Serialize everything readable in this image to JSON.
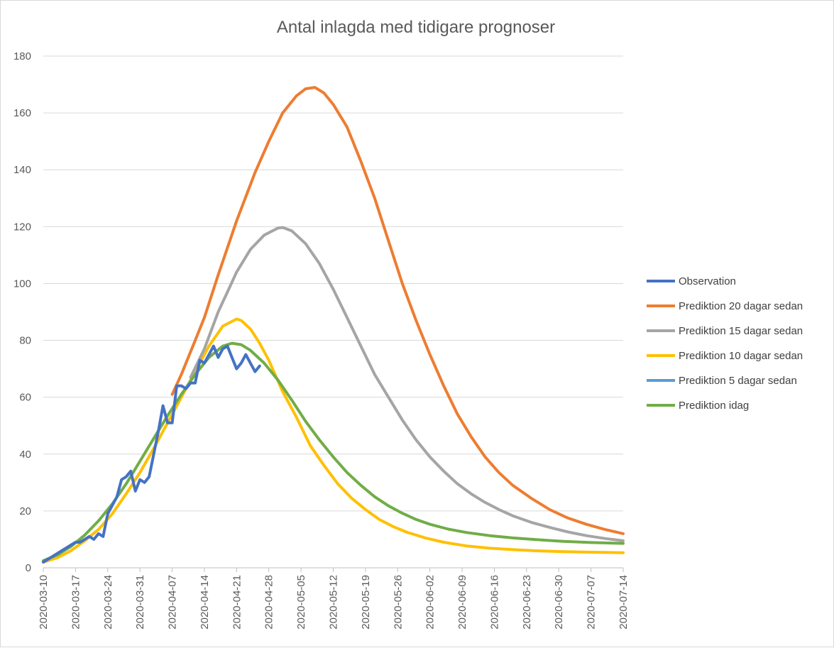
{
  "chart_data": {
    "type": "line",
    "title": "Antal inlagda med tidigare prognoser",
    "xlabel": "",
    "ylabel": "",
    "x_start": "2020-03-10",
    "x_end": "2020-07-14",
    "x_ticks": [
      "2020-03-10",
      "2020-03-17",
      "2020-03-24",
      "2020-03-31",
      "2020-04-07",
      "2020-04-14",
      "2020-04-21",
      "2020-04-28",
      "2020-05-05",
      "2020-05-12",
      "2020-05-19",
      "2020-05-26",
      "2020-06-02",
      "2020-06-09",
      "2020-06-16",
      "2020-06-23",
      "2020-06-30",
      "2020-07-07",
      "2020-07-14"
    ],
    "y_ticks": [
      0,
      20,
      40,
      60,
      80,
      100,
      120,
      140,
      160,
      180
    ],
    "ylim": [
      0,
      180
    ],
    "grid": true,
    "legend_position": "right",
    "series": [
      {
        "name": "Observation",
        "color": "#4472C4",
        "points": [
          [
            "2020-03-10",
            2
          ],
          [
            "2020-03-11",
            3
          ],
          [
            "2020-03-12",
            4
          ],
          [
            "2020-03-13",
            5
          ],
          [
            "2020-03-14",
            6
          ],
          [
            "2020-03-15",
            7
          ],
          [
            "2020-03-16",
            8
          ],
          [
            "2020-03-17",
            9
          ],
          [
            "2020-03-18",
            9
          ],
          [
            "2020-03-19",
            10
          ],
          [
            "2020-03-20",
            11
          ],
          [
            "2020-03-21",
            10
          ],
          [
            "2020-03-22",
            12
          ],
          [
            "2020-03-23",
            11
          ],
          [
            "2020-03-24",
            19
          ],
          [
            "2020-03-25",
            22
          ],
          [
            "2020-03-26",
            25
          ],
          [
            "2020-03-27",
            31
          ],
          [
            "2020-03-28",
            32
          ],
          [
            "2020-03-29",
            34
          ],
          [
            "2020-03-30",
            27
          ],
          [
            "2020-03-31",
            31
          ],
          [
            "2020-04-01",
            30
          ],
          [
            "2020-04-02",
            32
          ],
          [
            "2020-04-03",
            40
          ],
          [
            "2020-04-04",
            48
          ],
          [
            "2020-04-05",
            57
          ],
          [
            "2020-04-06",
            51
          ],
          [
            "2020-04-07",
            51
          ],
          [
            "2020-04-08",
            64
          ],
          [
            "2020-04-09",
            64
          ],
          [
            "2020-04-10",
            63
          ],
          [
            "2020-04-11",
            65
          ],
          [
            "2020-04-12",
            65
          ],
          [
            "2020-04-13",
            73
          ],
          [
            "2020-04-14",
            72
          ],
          [
            "2020-04-15",
            75
          ],
          [
            "2020-04-16",
            78
          ],
          [
            "2020-04-17",
            74
          ],
          [
            "2020-04-18",
            77
          ],
          [
            "2020-04-19",
            78
          ],
          [
            "2020-04-20",
            74
          ],
          [
            "2020-04-21",
            70
          ],
          [
            "2020-04-22",
            72
          ],
          [
            "2020-04-23",
            75
          ],
          [
            "2020-04-24",
            72
          ],
          [
            "2020-04-25",
            69
          ],
          [
            "2020-04-26",
            71
          ]
        ]
      },
      {
        "name": "Prediktion 20 dagar sedan",
        "color": "#ED7D31",
        "points": [
          [
            "2020-04-07",
            61
          ],
          [
            "2020-04-09",
            68
          ],
          [
            "2020-04-12",
            80
          ],
          [
            "2020-04-14",
            88
          ],
          [
            "2020-04-17",
            103
          ],
          [
            "2020-04-21",
            122
          ],
          [
            "2020-04-25",
            139
          ],
          [
            "2020-04-28",
            150
          ],
          [
            "2020-05-01",
            160
          ],
          [
            "2020-05-04",
            166
          ],
          [
            "2020-05-06",
            168.5
          ],
          [
            "2020-05-08",
            169
          ],
          [
            "2020-05-10",
            167
          ],
          [
            "2020-05-12",
            163
          ],
          [
            "2020-05-15",
            155
          ],
          [
            "2020-05-18",
            143
          ],
          [
            "2020-05-21",
            130
          ],
          [
            "2020-05-24",
            115
          ],
          [
            "2020-05-27",
            100
          ],
          [
            "2020-05-30",
            87
          ],
          [
            "2020-06-02",
            75
          ],
          [
            "2020-06-05",
            64
          ],
          [
            "2020-06-08",
            54
          ],
          [
            "2020-06-11",
            46
          ],
          [
            "2020-06-14",
            39
          ],
          [
            "2020-06-17",
            33.5
          ],
          [
            "2020-06-20",
            29
          ],
          [
            "2020-06-24",
            24.5
          ],
          [
            "2020-06-28",
            20.5
          ],
          [
            "2020-07-02",
            17.5
          ],
          [
            "2020-07-06",
            15.3
          ],
          [
            "2020-07-10",
            13.5
          ],
          [
            "2020-07-14",
            12
          ]
        ]
      },
      {
        "name": "Prediktion 15 dagar sedan",
        "color": "#A5A5A5",
        "points": [
          [
            "2020-04-11",
            67
          ],
          [
            "2020-04-14",
            77
          ],
          [
            "2020-04-17",
            90
          ],
          [
            "2020-04-19",
            97
          ],
          [
            "2020-04-21",
            104
          ],
          [
            "2020-04-24",
            112
          ],
          [
            "2020-04-27",
            117
          ],
          [
            "2020-04-30",
            119.5
          ],
          [
            "2020-05-01",
            119.7
          ],
          [
            "2020-05-03",
            118.5
          ],
          [
            "2020-05-06",
            114
          ],
          [
            "2020-05-09",
            107
          ],
          [
            "2020-05-12",
            98
          ],
          [
            "2020-05-15",
            88
          ],
          [
            "2020-05-18",
            78
          ],
          [
            "2020-05-21",
            68
          ],
          [
            "2020-05-24",
            60
          ],
          [
            "2020-05-27",
            52
          ],
          [
            "2020-05-30",
            45
          ],
          [
            "2020-06-02",
            39
          ],
          [
            "2020-06-05",
            34
          ],
          [
            "2020-06-08",
            29.5
          ],
          [
            "2020-06-11",
            26
          ],
          [
            "2020-06-14",
            23
          ],
          [
            "2020-06-17",
            20.5
          ],
          [
            "2020-06-20",
            18.3
          ],
          [
            "2020-06-24",
            16
          ],
          [
            "2020-06-28",
            14.2
          ],
          [
            "2020-07-02",
            12.6
          ],
          [
            "2020-07-06",
            11.3
          ],
          [
            "2020-07-10",
            10.3
          ],
          [
            "2020-07-14",
            9.5
          ]
        ]
      },
      {
        "name": "Prediktion 10 dagar sedan",
        "color": "#FFC000",
        "points": [
          [
            "2020-03-10",
            2
          ],
          [
            "2020-03-13",
            3.5
          ],
          [
            "2020-03-16",
            6
          ],
          [
            "2020-03-19",
            9.5
          ],
          [
            "2020-03-22",
            13.5
          ],
          [
            "2020-03-25",
            19
          ],
          [
            "2020-03-28",
            26
          ],
          [
            "2020-03-31",
            33.5
          ],
          [
            "2020-04-03",
            42
          ],
          [
            "2020-04-06",
            51
          ],
          [
            "2020-04-09",
            60
          ],
          [
            "2020-04-12",
            69
          ],
          [
            "2020-04-15",
            78
          ],
          [
            "2020-04-18",
            85
          ],
          [
            "2020-04-21",
            87.5
          ],
          [
            "2020-04-22",
            87
          ],
          [
            "2020-04-24",
            84
          ],
          [
            "2020-04-26",
            79
          ],
          [
            "2020-04-28",
            73
          ],
          [
            "2020-05-01",
            62
          ],
          [
            "2020-05-04",
            53
          ],
          [
            "2020-05-07",
            43
          ],
          [
            "2020-05-10",
            36
          ],
          [
            "2020-05-13",
            29.5
          ],
          [
            "2020-05-16",
            24.5
          ],
          [
            "2020-05-19",
            20.5
          ],
          [
            "2020-05-22",
            17
          ],
          [
            "2020-05-25",
            14.5
          ],
          [
            "2020-05-28",
            12.5
          ],
          [
            "2020-06-01",
            10.5
          ],
          [
            "2020-06-05",
            9
          ],
          [
            "2020-06-10",
            7.7
          ],
          [
            "2020-06-15",
            6.9
          ],
          [
            "2020-06-20",
            6.4
          ],
          [
            "2020-06-25",
            6
          ],
          [
            "2020-07-01",
            5.7
          ],
          [
            "2020-07-07",
            5.5
          ],
          [
            "2020-07-14",
            5.3
          ]
        ]
      },
      {
        "name": "Prediktion 5 dagar sedan",
        "color": "#5B9BD5",
        "points": []
      },
      {
        "name": "Prediktion idag",
        "color": "#70AD47",
        "points": [
          [
            "2020-03-10",
            2.5
          ],
          [
            "2020-03-13",
            4.5
          ],
          [
            "2020-03-16",
            7.5
          ],
          [
            "2020-03-19",
            11.5
          ],
          [
            "2020-03-22",
            16.5
          ],
          [
            "2020-03-25",
            22.5
          ],
          [
            "2020-03-28",
            29.5
          ],
          [
            "2020-03-31",
            37.5
          ],
          [
            "2020-04-03",
            45.5
          ],
          [
            "2020-04-06",
            53.5
          ],
          [
            "2020-04-09",
            61
          ],
          [
            "2020-04-12",
            68
          ],
          [
            "2020-04-15",
            74
          ],
          [
            "2020-04-18",
            78
          ],
          [
            "2020-04-20",
            79
          ],
          [
            "2020-04-22",
            78.5
          ],
          [
            "2020-04-24",
            76.5
          ],
          [
            "2020-04-27",
            72
          ],
          [
            "2020-04-30",
            66
          ],
          [
            "2020-05-03",
            59
          ],
          [
            "2020-05-06",
            51.5
          ],
          [
            "2020-05-09",
            45
          ],
          [
            "2020-05-12",
            39
          ],
          [
            "2020-05-15",
            33.5
          ],
          [
            "2020-05-18",
            29
          ],
          [
            "2020-05-21",
            25
          ],
          [
            "2020-05-24",
            21.8
          ],
          [
            "2020-05-27",
            19.2
          ],
          [
            "2020-05-30",
            17
          ],
          [
            "2020-06-02",
            15.3
          ],
          [
            "2020-06-06",
            13.6
          ],
          [
            "2020-06-10",
            12.4
          ],
          [
            "2020-06-15",
            11.3
          ],
          [
            "2020-06-20",
            10.5
          ],
          [
            "2020-06-25",
            9.9
          ],
          [
            "2020-07-01",
            9.3
          ],
          [
            "2020-07-07",
            8.9
          ],
          [
            "2020-07-14",
            8.6
          ]
        ]
      }
    ]
  }
}
